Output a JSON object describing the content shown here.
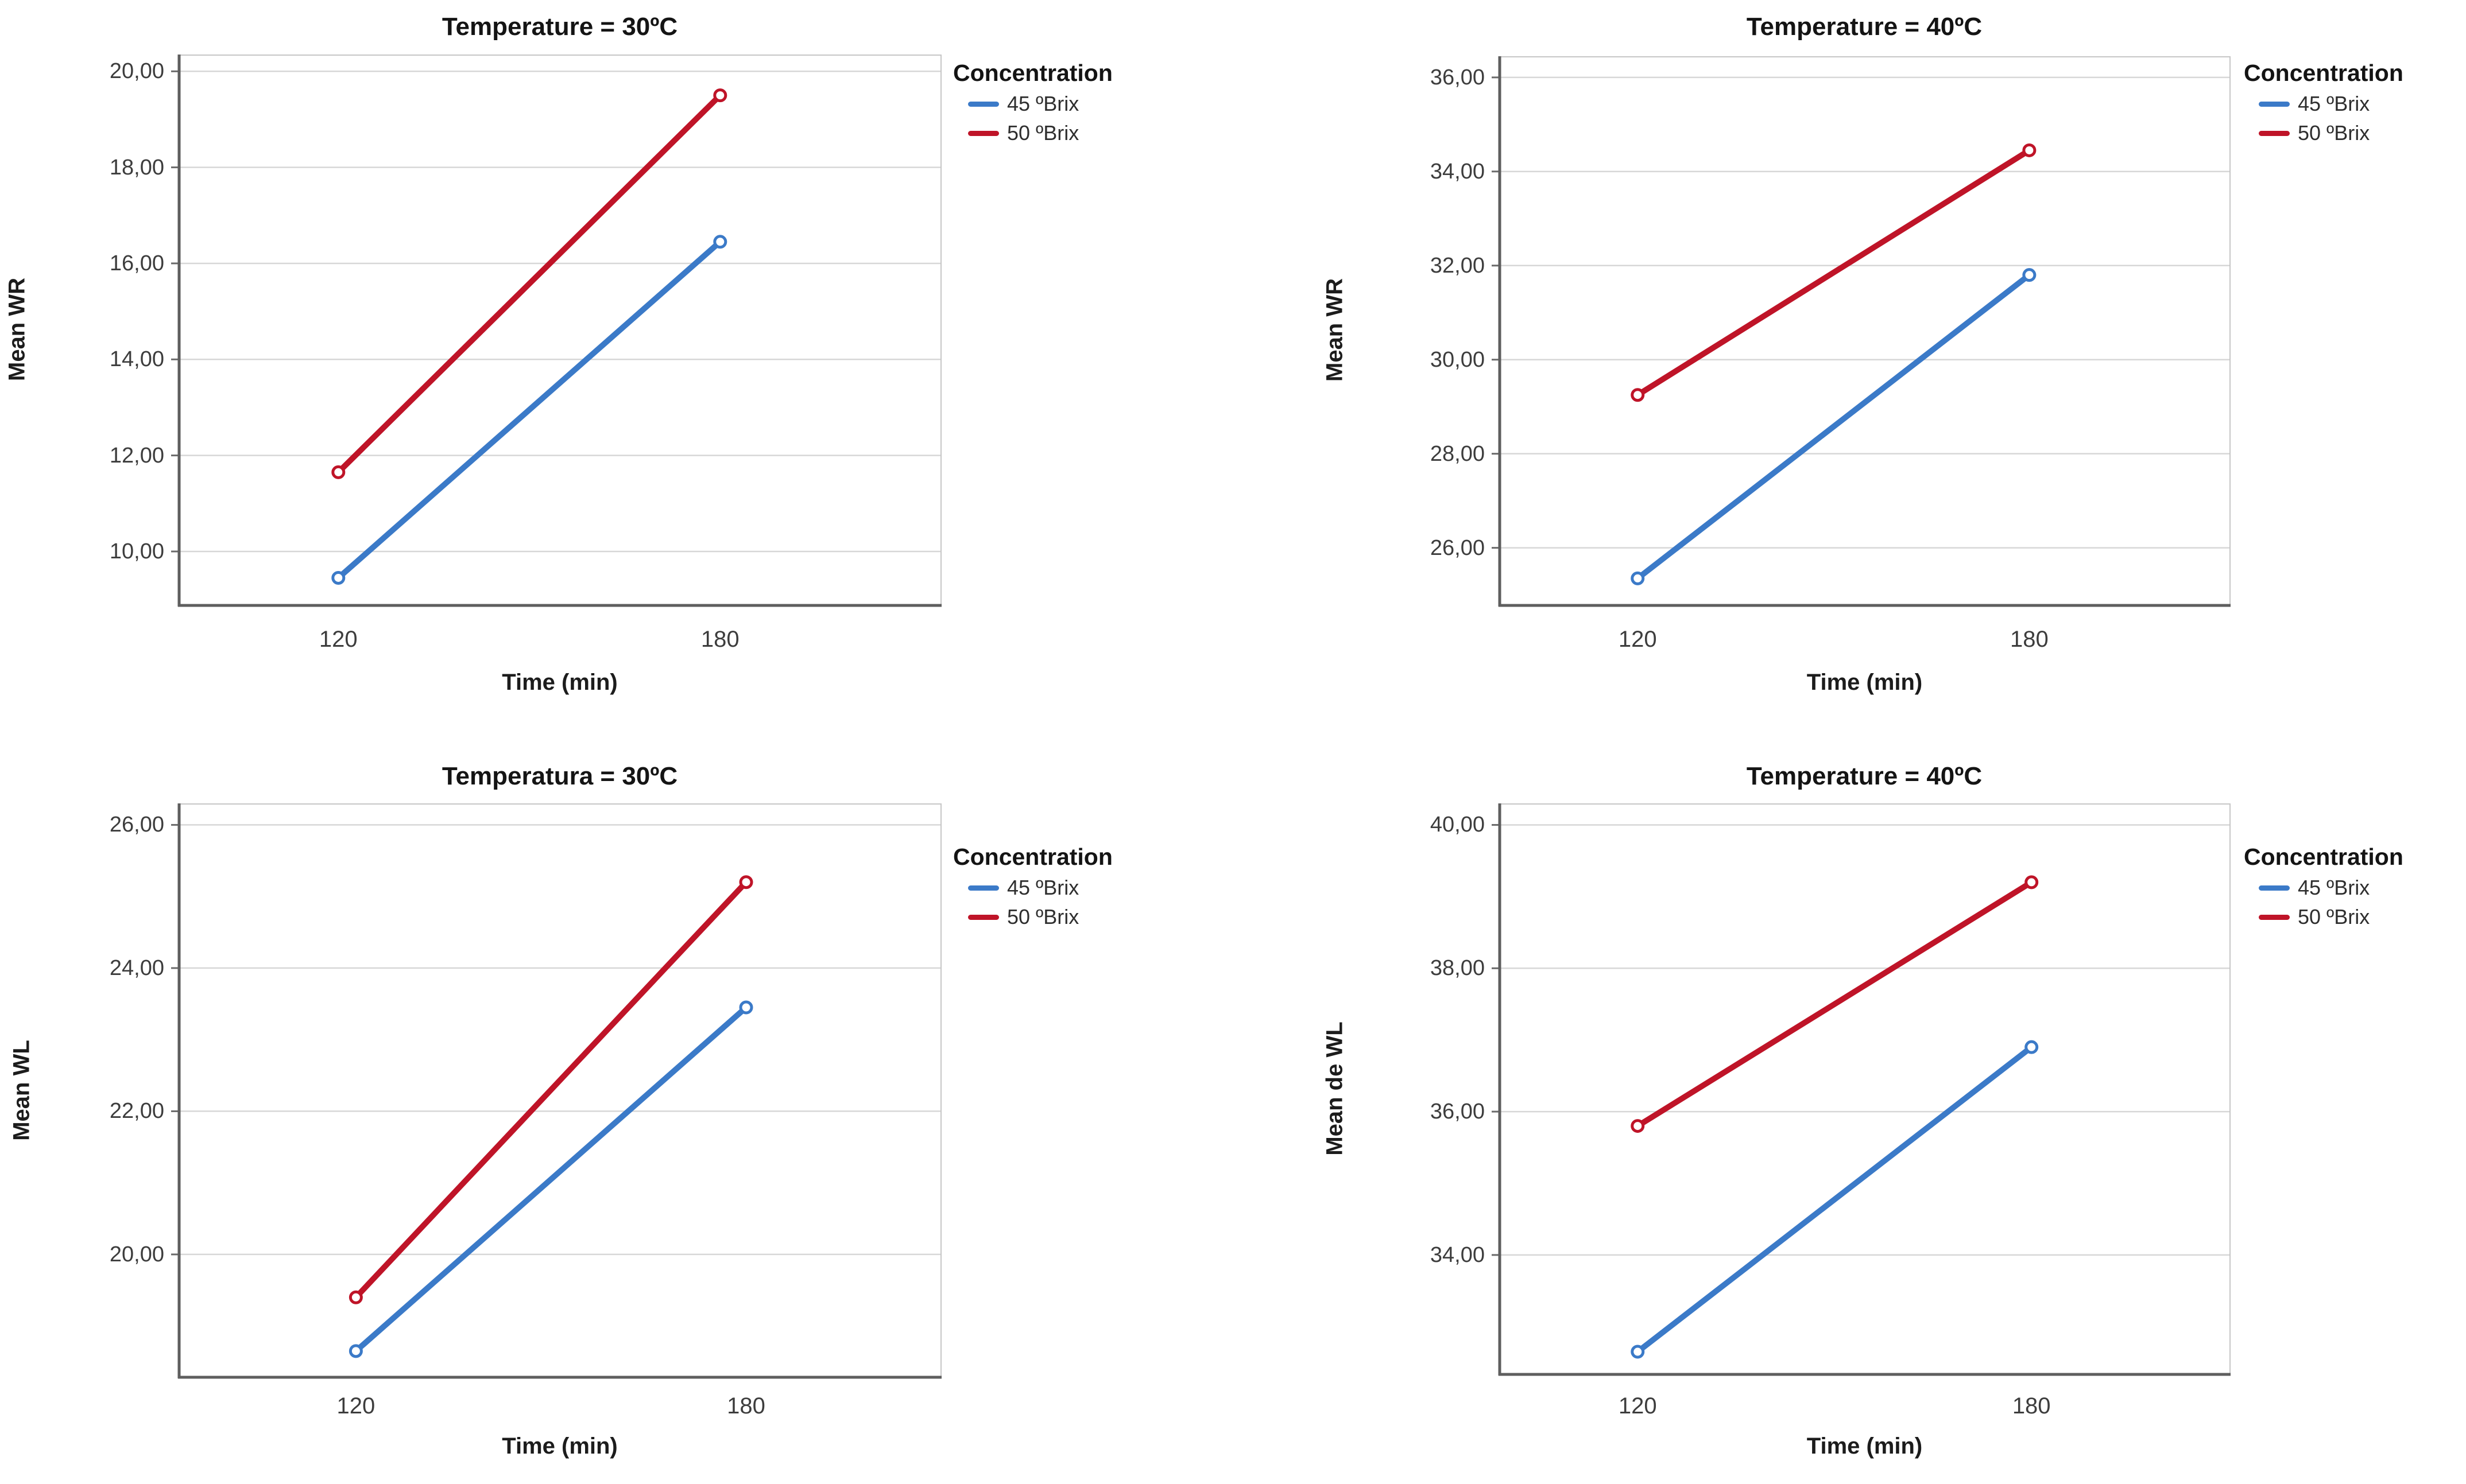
{
  "page": {
    "background": "#ffffff"
  },
  "palette": {
    "series_blue": "#3b7ac8",
    "series_red": "#bf1428",
    "gridline": "#d7d7d7",
    "axis_dark": "#5e5e5e",
    "axis_light": "#c6c6c6",
    "tick_text": "#3d3d3d",
    "title_text": "#141414"
  },
  "chart_data": [
    {
      "type": "line",
      "title": "Temperature = 30ºC",
      "xlabel": "Time (min)",
      "ylabel": "Mean WR",
      "categories": [
        "120",
        "180"
      ],
      "ytick_values": [
        20,
        18,
        16,
        14,
        12,
        10
      ],
      "ytick_labels": [
        "20,00",
        "18,00",
        "16,00",
        "14,00",
        "12,00",
        "10,00"
      ],
      "ylim": [
        8.9,
        20.35
      ],
      "grid": true,
      "legend_title": "Concentration",
      "legend_position": "right-top",
      "series": [
        {
          "name": "45 ºBrix",
          "color": "#3b7ac8",
          "values": [
            9.45,
            16.45
          ]
        },
        {
          "name": "50 ºBrix",
          "color": "#bf1428",
          "values": [
            11.65,
            19.5
          ]
        }
      ]
    },
    {
      "type": "line",
      "title": "Temperature = 40ºC",
      "xlabel": "Time (min)",
      "ylabel": "Mean WR",
      "categories": [
        "120",
        "180"
      ],
      "ytick_values": [
        36,
        34,
        32,
        30,
        28,
        26
      ],
      "ytick_labels": [
        "36,00",
        "34,00",
        "32,00",
        "30,00",
        "28,00",
        "26,00"
      ],
      "ylim": [
        24.8,
        36.45
      ],
      "grid": true,
      "legend_title": "Concentration",
      "legend_position": "right-top",
      "series": [
        {
          "name": "45 ºBrix",
          "color": "#3b7ac8",
          "values": [
            25.35,
            31.8
          ]
        },
        {
          "name": "50 ºBrix",
          "color": "#bf1428",
          "values": [
            29.25,
            34.45
          ]
        }
      ]
    },
    {
      "type": "line",
      "title": "Temperatura = 30ºC",
      "xlabel": "Time (min)",
      "ylabel": "Mean WL",
      "categories": [
        "120",
        "180"
      ],
      "ytick_values": [
        26,
        24,
        22,
        20
      ],
      "ytick_labels": [
        "26,00",
        "24,00",
        "22,00",
        "20,00"
      ],
      "ylim": [
        18.3,
        26.3
      ],
      "grid": true,
      "legend_title": "Concentration",
      "legend_position": "right-top",
      "series": [
        {
          "name": "45 ºBrix",
          "color": "#3b7ac8",
          "values": [
            18.65,
            23.45
          ]
        },
        {
          "name": "50 ºBrix",
          "color": "#bf1428",
          "values": [
            19.4,
            25.2
          ]
        }
      ]
    },
    {
      "type": "line",
      "title": "Temperature = 40ºC",
      "xlabel": "Time (min)",
      "ylabel": "Mean de WL",
      "categories": [
        "120",
        "180"
      ],
      "ytick_values": [
        40,
        38,
        36,
        34
      ],
      "ytick_labels": [
        "40,00",
        "38,00",
        "36,00",
        "34,00"
      ],
      "ylim": [
        32.35,
        40.3
      ],
      "grid": true,
      "legend_title": "Concentration",
      "legend_position": "right-top",
      "series": [
        {
          "name": "45 ºBrix",
          "color": "#3b7ac8",
          "values": [
            32.65,
            36.9
          ]
        },
        {
          "name": "50 ºBrix",
          "color": "#bf1428",
          "values": [
            35.8,
            39.2
          ]
        }
      ]
    }
  ]
}
